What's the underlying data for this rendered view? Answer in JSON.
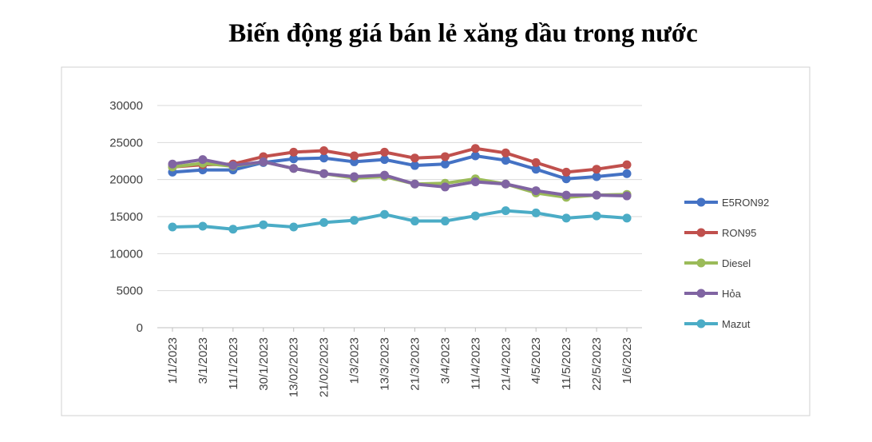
{
  "chart_data": {
    "type": "line",
    "title": "Biến động giá bán lẻ xăng dầu trong nước",
    "xlabel": "",
    "ylabel": "",
    "ylim": [
      0,
      30000
    ],
    "yticks": [
      0,
      5000,
      10000,
      15000,
      20000,
      25000,
      30000
    ],
    "grid": true,
    "legend_position": "right",
    "categories": [
      "1/1/2023",
      "3/1/2023",
      "11/1/2023",
      "30/1/2023",
      "13/02/2023",
      "21/02/2023",
      "1/3/2023",
      "13/3/2023",
      "21/3/2023",
      "3/4/2023",
      "11/4/2023",
      "21/4/2023",
      "4/5/2023",
      "11/5/2023",
      "22/5/2023",
      "1/6/2023"
    ],
    "series": [
      {
        "name": "E5RON92",
        "color": "#4472C4",
        "values": [
          21000,
          21300,
          21300,
          22300,
          22800,
          22900,
          22400,
          22700,
          21900,
          22100,
          23200,
          22600,
          21400,
          20100,
          20400,
          20800
        ]
      },
      {
        "name": "RON95",
        "color": "#C0504D",
        "values": [
          21700,
          22000,
          22100,
          23100,
          23700,
          23900,
          23200,
          23700,
          22900,
          23100,
          24200,
          23600,
          22300,
          21000,
          21400,
          22000
        ]
      },
      {
        "name": "Diesel",
        "color": "#9BBB59",
        "values": [
          21700,
          22200,
          21800,
          22400,
          21500,
          20800,
          20200,
          20400,
          19400,
          19500,
          20100,
          19400,
          18200,
          17600,
          17900,
          18000
        ]
      },
      {
        "name": "Hỏa",
        "color": "#8064A2",
        "values": [
          22100,
          22700,
          21900,
          22400,
          21500,
          20800,
          20400,
          20600,
          19400,
          19000,
          19700,
          19400,
          18500,
          17900,
          17900,
          17800
        ]
      },
      {
        "name": "Mazut",
        "color": "#4BACC6",
        "values": [
          13600,
          13700,
          13300,
          13900,
          13600,
          14200,
          14500,
          15300,
          14400,
          14400,
          15100,
          15800,
          15500,
          14800,
          15100,
          14800
        ]
      }
    ]
  }
}
